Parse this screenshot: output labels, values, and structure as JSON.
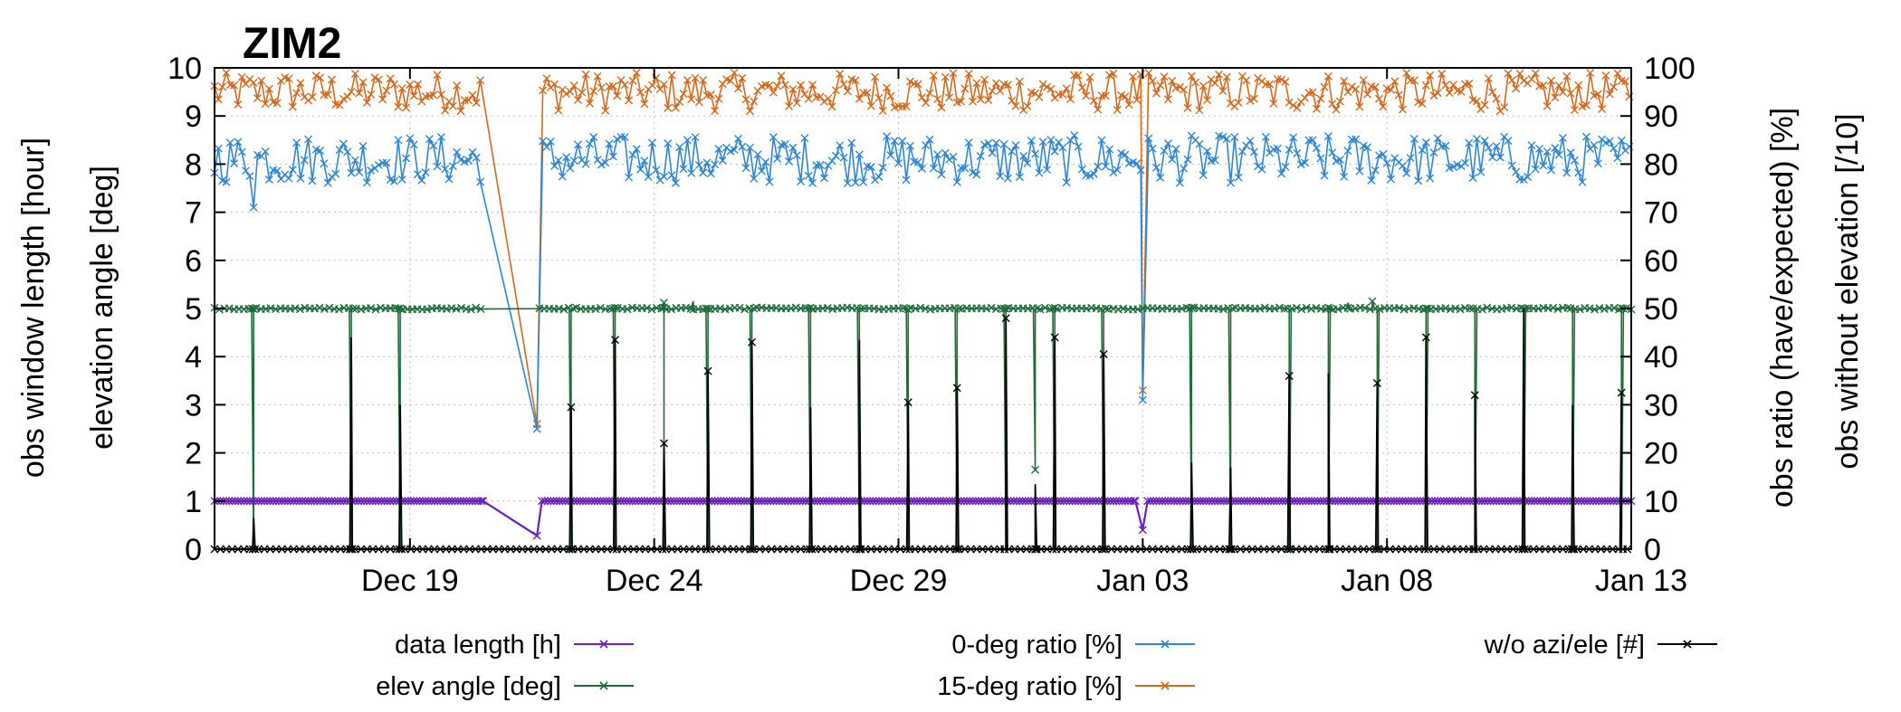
{
  "chart_data": {
    "type": "line",
    "title": "ZIM2",
    "left_axis_labels": [
      "obs window length [hour]",
      "elevation angle [deg]"
    ],
    "right_axis_labels": [
      "obs ratio (have/expected) [%]",
      "obs without elevation [/10]"
    ],
    "y_left": {
      "ticks": [
        "0",
        "1",
        "2",
        "3",
        "4",
        "5",
        "6",
        "7",
        "8",
        "9",
        "10"
      ],
      "ylim": [
        0,
        10
      ]
    },
    "y_right": {
      "ticks": [
        "0",
        "10",
        "20",
        "30",
        "40",
        "50",
        "60",
        "70",
        "80",
        "90",
        "100"
      ],
      "ylim": [
        0,
        100
      ]
    },
    "x_ticks": [
      {
        "label": "Dec 19",
        "day": 19
      },
      {
        "label": "Dec 24",
        "day": 24
      },
      {
        "label": "Dec 29",
        "day": 29
      },
      {
        "label": "Jan 03",
        "day": 34
      },
      {
        "label": "Jan 08",
        "day": 39
      },
      {
        "label": "Jan 13",
        "day": 44
      }
    ],
    "x_range_days": [
      15,
      44
    ],
    "grid": true,
    "legend_placement": "bottom",
    "series": [
      {
        "name": "data length  [h]",
        "color": "#6a1fb8",
        "axis": "left",
        "base": 1.0,
        "points": [
          [
            15.0,
            1.0
          ],
          [
            20.5,
            1.0
          ],
          [
            21.6,
            0.28
          ],
          [
            21.7,
            1.0
          ],
          [
            33.85,
            1.0
          ],
          [
            34.0,
            0.4
          ],
          [
            34.1,
            1.0
          ],
          [
            44.0,
            1.0
          ]
        ]
      },
      {
        "name": "elev angle [deg]",
        "color": "#1e6b3a",
        "axis": "left",
        "base": 5.0,
        "drops": [
          [
            15.8,
            0.0
          ],
          [
            17.8,
            0.0
          ],
          [
            18.8,
            0.0
          ],
          [
            22.3,
            0.0
          ],
          [
            23.2,
            0.0
          ],
          [
            24.2,
            0.0
          ],
          [
            25.1,
            0.0
          ],
          [
            26.0,
            0.0
          ],
          [
            27.2,
            0.0
          ],
          [
            28.2,
            0.0
          ],
          [
            29.2,
            0.0
          ],
          [
            30.2,
            0.0
          ],
          [
            31.2,
            0.0
          ],
          [
            31.8,
            1.65
          ],
          [
            32.2,
            0.0
          ],
          [
            33.2,
            0.0
          ],
          [
            35.0,
            0.0
          ],
          [
            35.8,
            0.0
          ],
          [
            37.0,
            0.0
          ],
          [
            37.8,
            0.0
          ],
          [
            38.8,
            0.0
          ],
          [
            39.8,
            0.0
          ],
          [
            40.8,
            0.0
          ],
          [
            41.8,
            0.0
          ],
          [
            42.8,
            0.0
          ],
          [
            43.8,
            0.0
          ]
        ],
        "gap": [
          20.5,
          21.6
        ],
        "bumps": [
          [
            24.2,
            5.12
          ],
          [
            24.8,
            5.15
          ],
          [
            38.2,
            5.12
          ],
          [
            38.7,
            5.15
          ]
        ]
      },
      {
        "name": "0-deg ratio [%]",
        "color": "#2e86d1",
        "axis": "right",
        "mean": 81,
        "spread": 5,
        "anomalies": [
          [
            15.8,
            71
          ],
          [
            21.6,
            25
          ],
          [
            34.0,
            31
          ]
        ],
        "gap": [
          20.5,
          21.6
        ]
      },
      {
        "name": "15-deg ratio [%]",
        "color": "#d2691e",
        "axis": "right",
        "mean": 95,
        "spread": 4,
        "anomalies": [
          [
            21.6,
            26
          ],
          [
            34.0,
            33
          ]
        ],
        "gap": [
          20.5,
          21.6
        ]
      },
      {
        "name": "w/o azi/ele [#]",
        "color": "#000000",
        "axis": "left",
        "base": 0.0,
        "spikes": [
          [
            15.8,
            0.65
          ],
          [
            17.8,
            4.4
          ],
          [
            18.8,
            3.0
          ],
          [
            22.3,
            2.95
          ],
          [
            23.2,
            4.35
          ],
          [
            24.2,
            2.2
          ],
          [
            25.1,
            3.7
          ],
          [
            26.0,
            4.3
          ],
          [
            27.2,
            2.95
          ],
          [
            28.2,
            4.35
          ],
          [
            29.2,
            3.05
          ],
          [
            30.2,
            3.35
          ],
          [
            31.2,
            4.8
          ],
          [
            31.8,
            1.35
          ],
          [
            32.2,
            4.4
          ],
          [
            33.2,
            4.05
          ],
          [
            35.0,
            1.8
          ],
          [
            35.8,
            1.7
          ],
          [
            37.0,
            3.6
          ],
          [
            37.8,
            3.65
          ],
          [
            38.8,
            3.45
          ],
          [
            39.8,
            4.4
          ],
          [
            40.8,
            3.2
          ],
          [
            41.8,
            5.0
          ],
          [
            42.8,
            3.0
          ],
          [
            43.8,
            3.25
          ]
        ]
      }
    ]
  },
  "legend": {
    "items": [
      {
        "label": "data length  [h]",
        "color": "#6a1fb8",
        "marker": "x"
      },
      {
        "label": "elev angle [deg]",
        "color": "#1e6b3a",
        "marker": "x"
      },
      {
        "label": "0-deg ratio [%]",
        "color": "#2e86d1",
        "marker": "x"
      },
      {
        "label": "15-deg ratio [%]",
        "color": "#d2691e",
        "marker": "x"
      },
      {
        "label": "w/o azi/ele [#]",
        "color": "#000000",
        "marker": "x"
      }
    ]
  }
}
